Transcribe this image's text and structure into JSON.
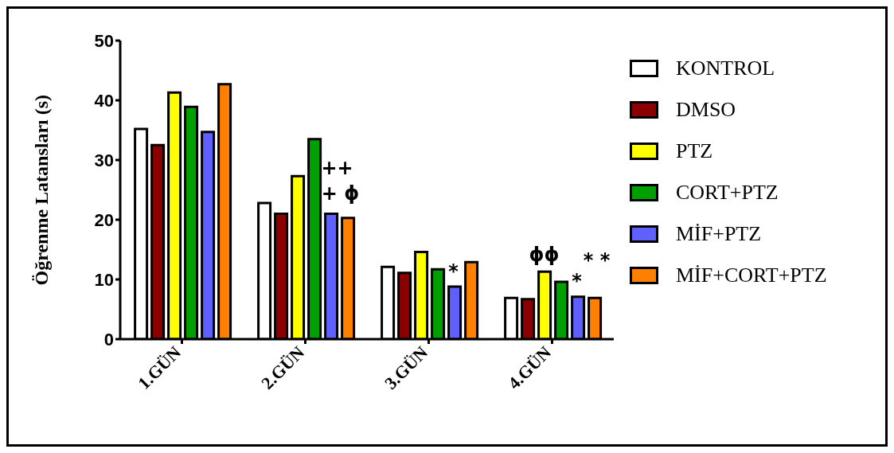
{
  "chart_data": {
    "type": "bar",
    "ylabel": "Öğrenme Latansları (s)",
    "categories": [
      "1.GÜN",
      "2.GÜN",
      "3.GÜN",
      "4.GÜN"
    ],
    "series": [
      {
        "name": "KONTROL",
        "color": "#ffffff",
        "values": [
          35.2,
          22.8,
          12.1,
          6.9
        ]
      },
      {
        "name": "DMSO",
        "color": "#8b0000",
        "values": [
          32.5,
          21.0,
          11.1,
          6.7
        ]
      },
      {
        "name": "PTZ",
        "color": "#ffff00",
        "values": [
          41.3,
          27.3,
          14.6,
          11.3
        ]
      },
      {
        "name": "CORT+PTZ",
        "color": "#00a000",
        "values": [
          38.9,
          33.5,
          11.7,
          9.6
        ]
      },
      {
        "name": "MİF+PTZ",
        "color": "#6060ff",
        "values": [
          34.7,
          21.0,
          8.8,
          7.1
        ]
      },
      {
        "name": "MİF+CORT+PTZ",
        "color": "#ff8000",
        "values": [
          42.7,
          20.3,
          12.9,
          6.9
        ]
      }
    ],
    "ylim": [
      0,
      50
    ],
    "yticks": [
      0,
      10,
      20,
      30,
      40,
      50
    ],
    "grid": false,
    "legend": "right",
    "annotations": [
      {
        "text": "++",
        "x": "2.GÜN",
        "y": 21.0
      },
      {
        "text": "+ ϕ",
        "x": "2.GÜN",
        "y": 21.0
      },
      {
        "text": "*",
        "x": "3.GÜN",
        "y": 8.8
      },
      {
        "text": "ϕϕ",
        "x": "4.GÜN",
        "y": 11.3
      },
      {
        "text": "*",
        "x": "4.GÜN",
        "y": 7.1
      },
      {
        "text": "* *",
        "x": "4.GÜN",
        "y": 6.9
      }
    ]
  }
}
